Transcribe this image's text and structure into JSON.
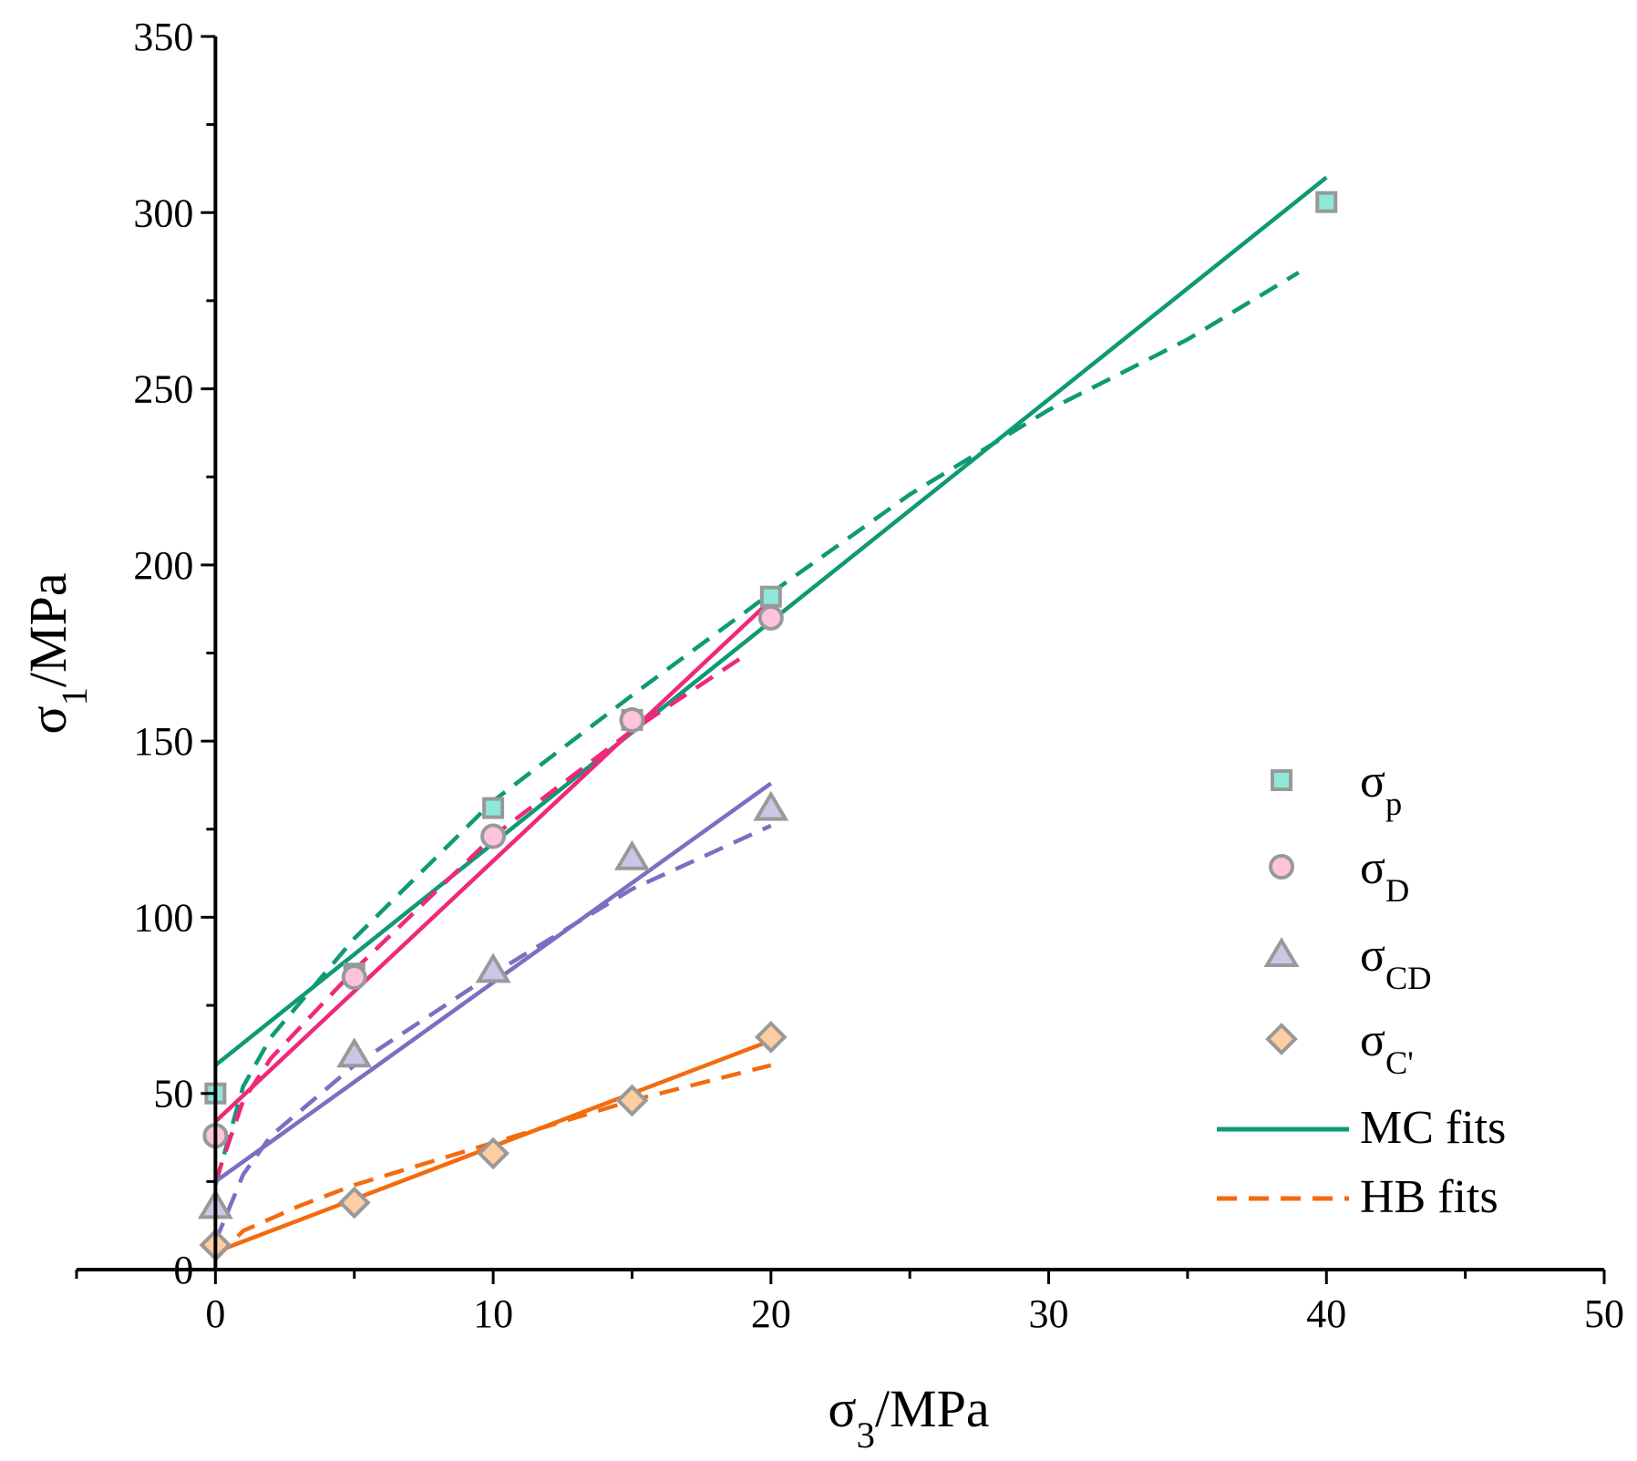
{
  "chart_data": {
    "type": "scatter",
    "xlabel": {
      "symbol": "σ",
      "sub": "3",
      "unit": "/MPa"
    },
    "ylabel": {
      "symbol": "σ",
      "sub": "1",
      "unit": "/MPa"
    },
    "xlim": [
      -5,
      50
    ],
    "ylim": [
      0,
      350
    ],
    "xticks": [
      0,
      10,
      20,
      30,
      40,
      50
    ],
    "yticks": [
      0,
      50,
      100,
      150,
      200,
      250,
      300,
      350
    ],
    "grid": false,
    "legend_position": "right",
    "series": [
      {
        "key": "sp",
        "symbol": "σ",
        "sub": "p",
        "marker": "square",
        "marker_color": "#8ee8da",
        "line_color": "#0e9a74",
        "points": [
          [
            0,
            50
          ],
          [
            5,
            84
          ],
          [
            10,
            131
          ],
          [
            15,
            156
          ],
          [
            20,
            191
          ],
          [
            40,
            303
          ]
        ],
        "mc_fit": [
          [
            0,
            58
          ],
          [
            40,
            310
          ]
        ],
        "hb_fit": [
          [
            0,
            24
          ],
          [
            1,
            52
          ],
          [
            2,
            66
          ],
          [
            5,
            94
          ],
          [
            10,
            133
          ],
          [
            15,
            163
          ],
          [
            20,
            192
          ],
          [
            25,
            220
          ],
          [
            30,
            244
          ],
          [
            35,
            264
          ],
          [
            39,
            283
          ]
        ]
      },
      {
        "key": "sd",
        "symbol": "σ",
        "sub": "D",
        "marker": "circle",
        "marker_color": "#ffc4dc",
        "line_color": "#f0287a",
        "points": [
          [
            0,
            38
          ],
          [
            5,
            83
          ],
          [
            10,
            123
          ],
          [
            15,
            156
          ],
          [
            20,
            185
          ]
        ],
        "mc_fit": [
          [
            0,
            42
          ],
          [
            20,
            190
          ]
        ],
        "hb_fit": [
          [
            0,
            25
          ],
          [
            1,
            48
          ],
          [
            2,
            60
          ],
          [
            5,
            85
          ],
          [
            10,
            123
          ],
          [
            15,
            153
          ],
          [
            19,
            174
          ]
        ]
      },
      {
        "key": "scd",
        "symbol": "σ",
        "sub": "CD",
        "marker": "triangle",
        "marker_color": "#ccc6e6",
        "line_color": "#7b6fc2",
        "points": [
          [
            0,
            18
          ],
          [
            5,
            61
          ],
          [
            10,
            85
          ],
          [
            15,
            117
          ],
          [
            20,
            131
          ]
        ],
        "mc_fit": [
          [
            0,
            25
          ],
          [
            20,
            138
          ]
        ],
        "hb_fit": [
          [
            0,
            8
          ],
          [
            1,
            27
          ],
          [
            2,
            38
          ],
          [
            5,
            58
          ],
          [
            10,
            84
          ],
          [
            15,
            108
          ],
          [
            20,
            126
          ]
        ]
      },
      {
        "key": "sc",
        "symbol": "σ",
        "sub": "C'",
        "marker": "diamond",
        "marker_color": "#ffcda2",
        "line_color": "#f46b0e",
        "points": [
          [
            0,
            7
          ],
          [
            5,
            19
          ],
          [
            10,
            33
          ],
          [
            15,
            48
          ],
          [
            20,
            66
          ]
        ],
        "mc_fit": [
          [
            0,
            5
          ],
          [
            20,
            65
          ]
        ],
        "hb_fit": [
          [
            0,
            3
          ],
          [
            1,
            11
          ],
          [
            3,
            18
          ],
          [
            5,
            24
          ],
          [
            10,
            36
          ],
          [
            15,
            48
          ],
          [
            20,
            58
          ]
        ]
      }
    ],
    "marker_edge_color": "#999999",
    "legend_fits": [
      {
        "label": "MC fits",
        "style": "solid",
        "color": "#0e9a74"
      },
      {
        "label": "HB fits",
        "style": "dashed",
        "color": "#f46b0e"
      }
    ]
  }
}
